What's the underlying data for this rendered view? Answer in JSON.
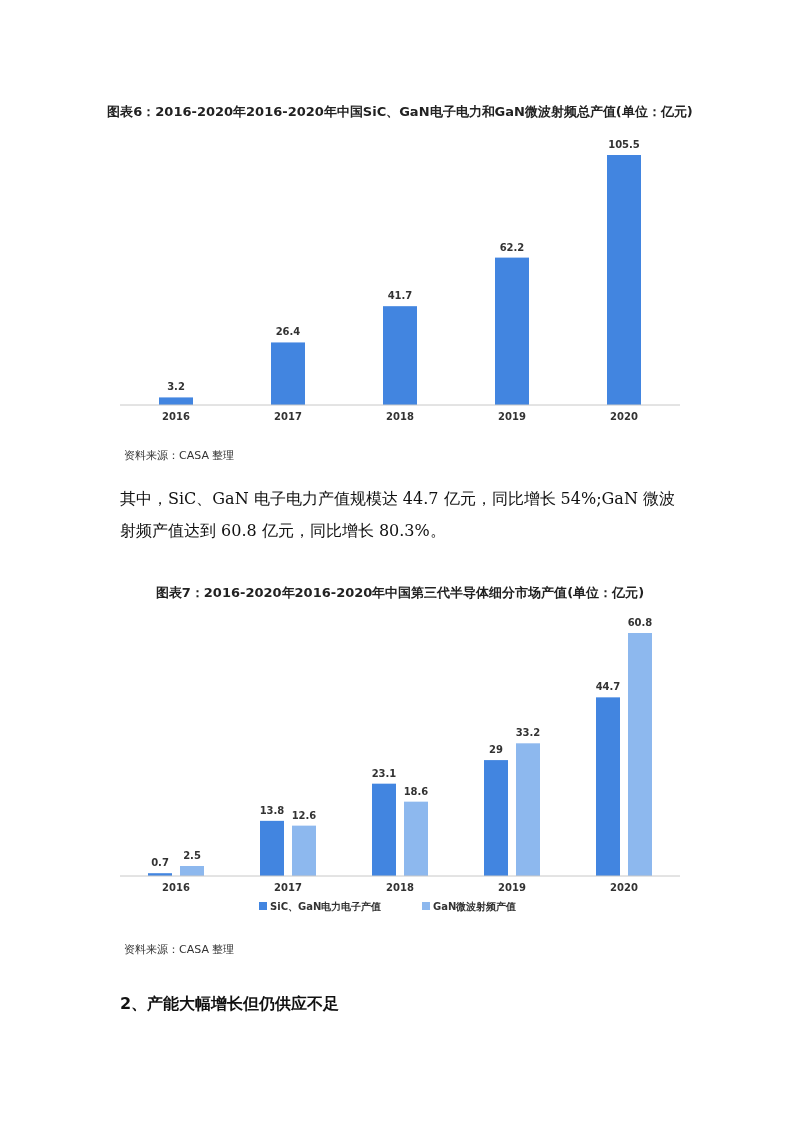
{
  "chart_data": [
    {
      "type": "bar",
      "title": "图表6：2016-2020年2016-2020年中国SiC、GaN电子电力和GaN微波射频总产值(单位：亿元)",
      "categories": [
        "2016",
        "2017",
        "2018",
        "2019",
        "2020"
      ],
      "values": [
        3.2,
        26.4,
        41.7,
        62.2,
        105.5
      ],
      "color": "#4285e0",
      "data_labels": true,
      "annotations": [
        "资料来源：CASA 整理",
        "其中，SiC、GaN 电子电力产值规模达 44.7 亿元，同比增长 54%;GaN 微波射频产值达到 60.8 亿元，同比增长 80.3%。"
      ]
    },
    {
      "type": "bar",
      "title": "图表7：2016-2020年2016-2020年中国第三代半导体细分市场产值(单位：亿元)",
      "categories": [
        "2016",
        "2017",
        "2018",
        "2019",
        "2020"
      ],
      "series": [
        {
          "name": "SiC、GaN电力电子产值",
          "color": "#4285e0",
          "values": [
            0.7,
            13.8,
            23.1,
            29,
            44.7
          ]
        },
        {
          "name": "GaN微波射频产值",
          "color": "#8db8ee",
          "values": [
            2.5,
            12.6,
            18.6,
            33.2,
            60.8
          ]
        }
      ],
      "data_labels": true,
      "legend": "bottom",
      "annotations": [
        "资料来源：CASA 整理",
        "2、产能大幅增长但仍供应不足"
      ]
    }
  ]
}
